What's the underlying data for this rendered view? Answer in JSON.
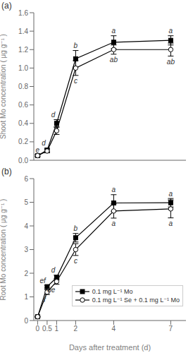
{
  "chart_data": [
    {
      "type": "line",
      "title": "(a)",
      "x": [
        0,
        0.5,
        1,
        2,
        4,
        7
      ],
      "xlim": [
        -0.2,
        7.8
      ],
      "xticks": [
        0,
        0.5,
        1,
        2,
        4,
        7
      ],
      "ylabel": "Shoot Mo concentration ( μg g⁻¹ )",
      "ylim": [
        0.0,
        1.6
      ],
      "yticks": [
        {
          "value": 0.0,
          "label": "0.0"
        },
        0.2,
        0.4,
        0.6,
        0.8,
        {
          "value": 1.0,
          "label": "1.0"
        },
        1.2,
        1.4,
        1.6
      ],
      "tick_labels": "y",
      "grid": false,
      "legend": false,
      "series": [
        {
          "name": "0.1 mg L⁻¹ Mo",
          "color": "black",
          "marker": "filled square",
          "values": [
            0.05,
            0.11,
            0.4,
            1.1,
            1.28,
            1.3
          ],
          "errors": [
            0.01,
            0.02,
            0.04,
            0.09,
            0.07,
            0.05
          ]
        },
        {
          "name": "0.1 mg L⁻¹ Se + 0.1 mg L⁻¹ Mo",
          "color": "black",
          "marker": "open circle",
          "values": [
            0.05,
            0.1,
            0.32,
            1.0,
            1.2,
            1.2
          ],
          "errors": [
            0.01,
            0.02,
            0.04,
            0.08,
            0.05,
            0.07
          ]
        }
      ],
      "annotations": [
        {
          "x": 0,
          "y": 0.065,
          "text": "e"
        },
        {
          "x": 0.5,
          "y": 0.135,
          "text": "d"
        },
        {
          "x": 1,
          "y": 0.445,
          "text": "d"
        },
        {
          "x": 2,
          "y": 1.195,
          "text": "b"
        },
        {
          "x": 4,
          "y": 1.355,
          "text": "a"
        },
        {
          "x": 7,
          "y": 1.355,
          "text": "a"
        },
        {
          "x": 2,
          "y": 0.915,
          "text": "c"
        },
        {
          "x": 4,
          "y": 1.145,
          "text": "ab"
        },
        {
          "x": 7,
          "y": 1.125,
          "text": "ab"
        }
      ]
    },
    {
      "type": "line",
      "title": "(b)",
      "x": [
        0,
        0.5,
        1,
        2,
        4,
        7
      ],
      "xlim": [
        -0.2,
        7.8
      ],
      "xticks": [
        0,
        0.5,
        1,
        2,
        4,
        7
      ],
      "xlabel": "Days after treatment (d)",
      "ylabel": "Root Mo concentration ( μg g⁻¹ )",
      "ylim": [
        0,
        6
      ],
      "yticks": [
        0,
        1,
        2,
        3,
        4,
        5,
        6
      ],
      "grid": false,
      "legend": "lower right",
      "series": [
        {
          "name": "0.1 mg L⁻¹ Mo",
          "color": "black",
          "marker": "filled square",
          "values": [
            0.16,
            1.43,
            1.82,
            3.5,
            4.97,
            4.98
          ],
          "errors": [
            0.02,
            0.06,
            0.1,
            0.18,
            0.35,
            0.18
          ]
        },
        {
          "name": "0.1 mg L⁻¹ Se + 0.1 mg L⁻¹ Mo",
          "color": "black",
          "marker": "open circle",
          "values": [
            0.16,
            1.2,
            1.65,
            3.0,
            4.63,
            4.72
          ],
          "errors": [
            0.02,
            0.1,
            0.12,
            0.25,
            0.3,
            0.38
          ]
        }
      ],
      "annotations": [
        {
          "x": 0.5,
          "y": 1.5,
          "text": "ef"
        },
        {
          "x": 1,
          "y": 1.93,
          "text": "d"
        },
        {
          "x": 2,
          "y": 3.69,
          "text": "b"
        },
        {
          "x": 4,
          "y": 5.33,
          "text": "a"
        },
        {
          "x": 7,
          "y": 5.17,
          "text": "a"
        },
        {
          "x": 0.5,
          "y": 1.09,
          "text": "f"
        },
        {
          "x": 1,
          "y": 1.52,
          "text": "de"
        },
        {
          "x": 2,
          "y": 2.74,
          "text": "c"
        },
        {
          "x": 4,
          "y": 4.32,
          "text": "a"
        },
        {
          "x": 7,
          "y": 4.33,
          "text": "a"
        }
      ]
    }
  ]
}
